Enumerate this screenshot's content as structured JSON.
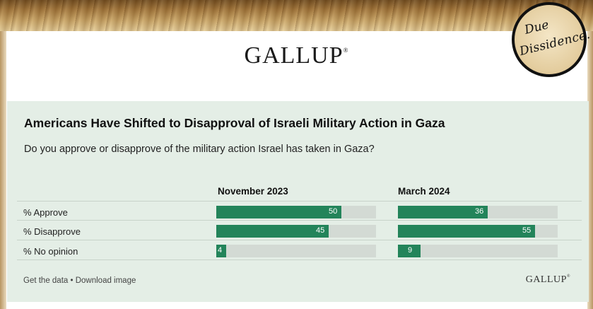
{
  "watermark": {
    "line1": "Due",
    "line2": "Dissidence."
  },
  "header": {
    "logo": "GALLUP",
    "logo_mark": "®"
  },
  "chart_data": {
    "type": "bar",
    "title": "Americans Have Shifted to Disapproval of Israeli Military Action in Gaza",
    "subtitle": "Do you approve or disapprove of the military action Israel has taken in Gaza?",
    "categories": [
      "% Approve",
      "% Disapprove",
      "% No opinion"
    ],
    "series": [
      {
        "name": "November 2023",
        "values": [
          50,
          45,
          4
        ]
      },
      {
        "name": "March 2024",
        "values": [
          36,
          55,
          9
        ]
      }
    ],
    "ylim": [
      0,
      64
    ],
    "orientation": "horizontal",
    "bar_color": "#23845a",
    "track_color": "#d3dad4"
  },
  "footer": {
    "links": "Get the data • Download image",
    "logo": "GALLUP",
    "logo_mark": "®"
  }
}
